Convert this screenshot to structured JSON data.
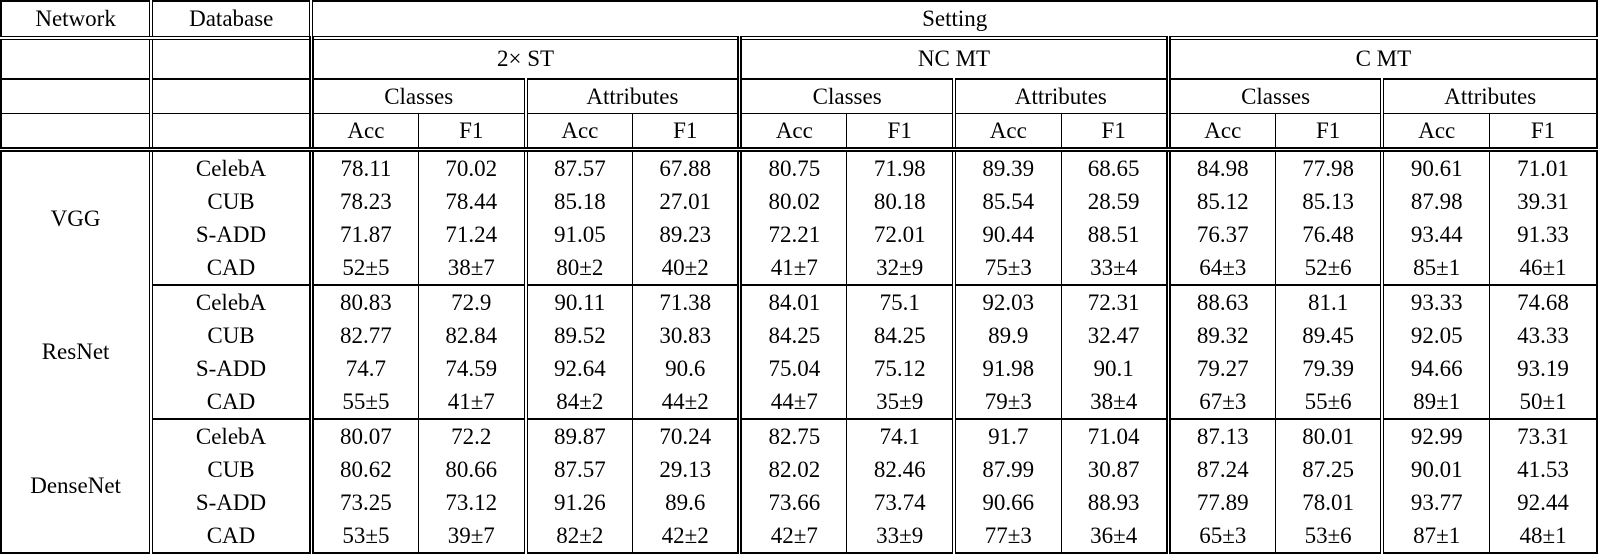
{
  "table": {
    "col_headers": {
      "network": "Network",
      "database": "Database",
      "setting": "Setting",
      "settings": [
        "2× ST",
        "NC MT",
        "C MT"
      ],
      "subgroups": [
        "Classes",
        "Attributes"
      ],
      "metrics": [
        "Acc",
        "F1"
      ]
    },
    "bold_setting": "C MT",
    "groups": [
      {
        "network": "VGG",
        "rows": [
          {
            "database": "CelebA",
            "values": [
              "78.11",
              "70.02",
              "87.57",
              "67.88",
              "80.75",
              "71.98",
              "89.39",
              "68.65",
              "84.98",
              "77.98",
              "90.61",
              "71.01"
            ]
          },
          {
            "database": "CUB",
            "values": [
              "78.23",
              "78.44",
              "85.18",
              "27.01",
              "80.02",
              "80.18",
              "85.54",
              "28.59",
              "85.12",
              "85.13",
              "87.98",
              "39.31"
            ]
          },
          {
            "database": "S-ADD",
            "values": [
              "71.87",
              "71.24",
              "91.05",
              "89.23",
              "72.21",
              "72.01",
              "90.44",
              "88.51",
              "76.37",
              "76.48",
              "93.44",
              "91.33"
            ]
          },
          {
            "database": "CAD",
            "values": [
              "52±5",
              "38±7",
              "80±2",
              "40±2",
              "41±7",
              "32±9",
              "75±3",
              "33±4",
              "64±3",
              "52±6",
              "85±1",
              "46±1"
            ]
          }
        ]
      },
      {
        "network": "ResNet",
        "rows": [
          {
            "database": "CelebA",
            "values": [
              "80.83",
              "72.9",
              "90.11",
              "71.38",
              "84.01",
              "75.1",
              "92.03",
              "72.31",
              "88.63",
              "81.1",
              "93.33",
              "74.68"
            ]
          },
          {
            "database": "CUB",
            "values": [
              "82.77",
              "82.84",
              "89.52",
              "30.83",
              "84.25",
              "84.25",
              "89.9",
              "32.47",
              "89.32",
              "89.45",
              "92.05",
              "43.33"
            ]
          },
          {
            "database": "S-ADD",
            "values": [
              "74.7",
              "74.59",
              "92.64",
              "90.6",
              "75.04",
              "75.12",
              "91.98",
              "90.1",
              "79.27",
              "79.39",
              "94.66",
              "93.19"
            ]
          },
          {
            "database": "CAD",
            "values": [
              "55±5",
              "41±7",
              "84±2",
              "44±2",
              "44±7",
              "35±9",
              "79±3",
              "38±4",
              "67±3",
              "55±6",
              "89±1",
              "50±1"
            ]
          }
        ]
      },
      {
        "network": "DenseNet",
        "rows": [
          {
            "database": "CelebA",
            "values": [
              "80.07",
              "72.2",
              "89.87",
              "70.24",
              "82.75",
              "74.1",
              "91.7",
              "71.04",
              "87.13",
              "80.01",
              "92.99",
              "73.31"
            ]
          },
          {
            "database": "CUB",
            "values": [
              "80.62",
              "80.66",
              "87.57",
              "29.13",
              "82.02",
              "82.46",
              "87.99",
              "30.87",
              "87.24",
              "87.25",
              "90.01",
              "41.53"
            ]
          },
          {
            "database": "S-ADD",
            "values": [
              "73.25",
              "73.12",
              "91.26",
              "89.6",
              "73.66",
              "73.74",
              "90.66",
              "88.93",
              "77.89",
              "78.01",
              "93.77",
              "92.44"
            ]
          },
          {
            "database": "CAD",
            "values": [
              "53±5",
              "39±7",
              "82±2",
              "42±2",
              "42±7",
              "33±9",
              "77±3",
              "36±4",
              "65±3",
              "53±6",
              "87±1",
              "48±1"
            ]
          }
        ]
      }
    ]
  }
}
